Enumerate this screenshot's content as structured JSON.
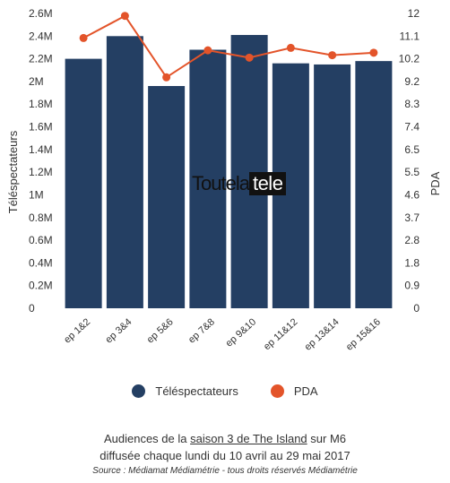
{
  "chart_data": {
    "type": "bar",
    "categories": [
      "ep 1&2",
      "ep 3&4",
      "ep 5&6",
      "ep 7&8",
      "ep 9&10",
      "ep 11&12",
      "ep 13&14",
      "ep 15&16"
    ],
    "series": [
      {
        "name": "Téléspectateurs",
        "type": "bar",
        "axis": "left",
        "color": "#243f63",
        "values": [
          2.2,
          2.4,
          1.96,
          2.28,
          2.41,
          2.16,
          2.15,
          2.18
        ]
      },
      {
        "name": "PDA",
        "type": "line",
        "axis": "right",
        "color": "#e3542a",
        "values": [
          11.0,
          11.9,
          9.4,
          10.5,
          10.2,
          10.6,
          10.3,
          10.4
        ]
      }
    ],
    "ylabel": "Téléspectateurs",
    "y2label": "PDA",
    "ylim": [
      0,
      2.6
    ],
    "y2lim": [
      0,
      12
    ],
    "yticks": [
      "0",
      "0.2M",
      "0.4M",
      "0.6M",
      "0.8M",
      "1M",
      "1.2M",
      "1.4M",
      "1.6M",
      "1.8M",
      "2M",
      "2.2M",
      "2.4M",
      "2.6M"
    ],
    "y2ticks": [
      "0",
      "0.9",
      "1.8",
      "2.8",
      "3.7",
      "4.6",
      "5.5",
      "6.5",
      "7.4",
      "8.3",
      "9.2",
      "10.2",
      "11.1",
      "12"
    ],
    "grid": false,
    "legend": "bottom"
  },
  "watermark": {
    "part1": "Toutela",
    "part2": "tele"
  },
  "caption": {
    "line1_before": "Audiences de la ",
    "line1_link": "saison 3 de The Island",
    "line1_after": " sur M6",
    "line2": "diffusée chaque lundi du 10 avril au 29 mai 2017"
  },
  "source": "Source : Médiamat Médiamétrie - tous droits réservés Médiamétrie"
}
